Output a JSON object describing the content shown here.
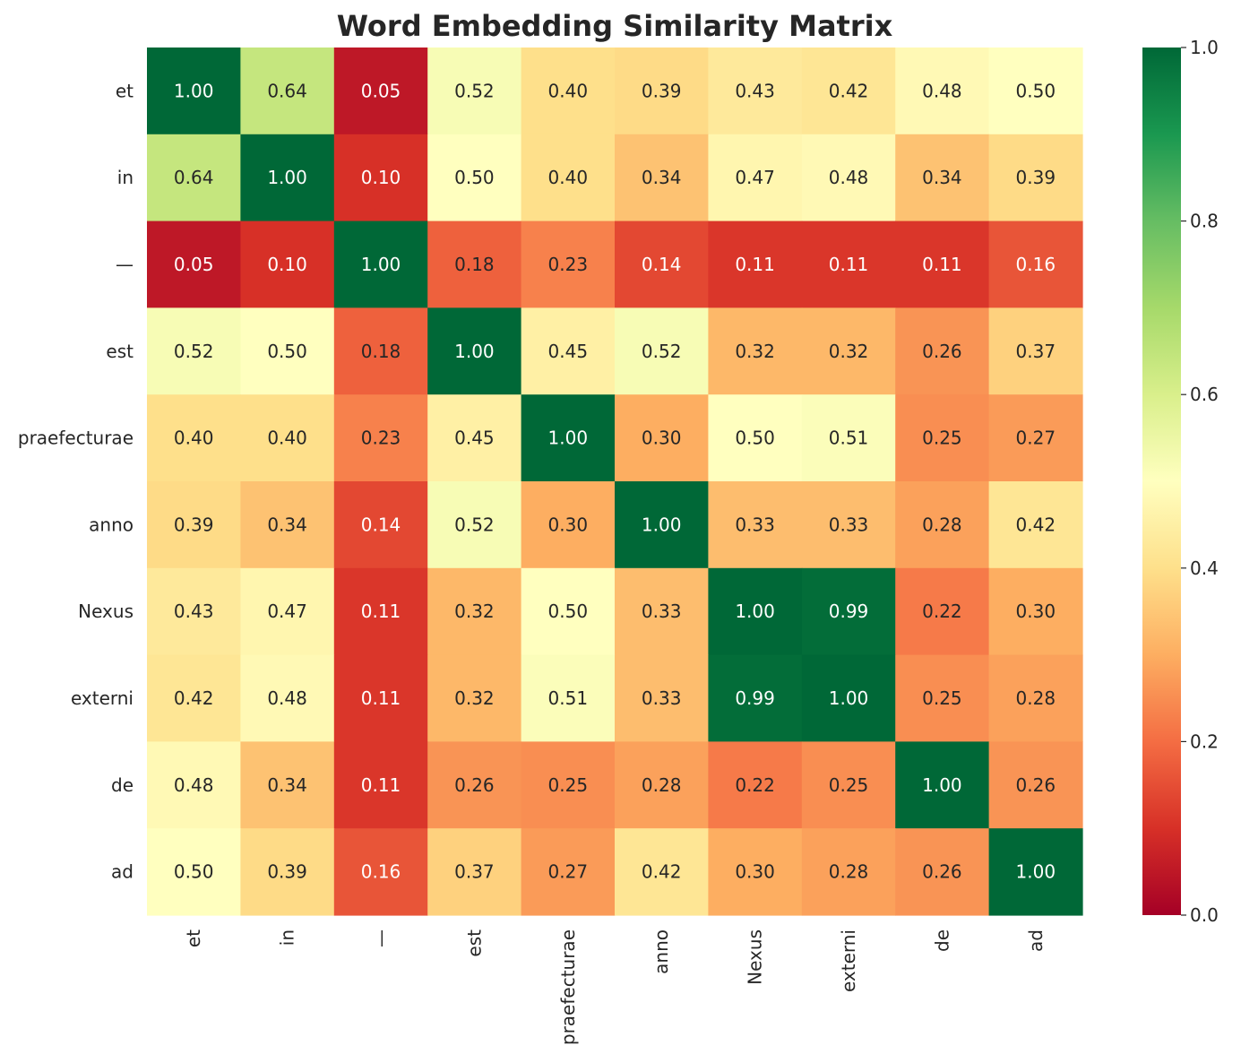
{
  "chart_data": {
    "type": "heatmap",
    "title": "Word Embedding Similarity Matrix",
    "xlabel": "",
    "ylabel": "",
    "row_labels": [
      "et",
      "in",
      "—",
      "est",
      "praefecturae",
      "anno",
      "Nexus",
      "externi",
      "de",
      "ad"
    ],
    "col_labels": [
      "et",
      "in",
      "—",
      "est",
      "praefecturae",
      "anno",
      "Nexus",
      "externi",
      "de",
      "ad"
    ],
    "values": [
      [
        1.0,
        0.64,
        0.05,
        0.52,
        0.4,
        0.39,
        0.43,
        0.42,
        0.48,
        0.5
      ],
      [
        0.64,
        1.0,
        0.1,
        0.5,
        0.4,
        0.34,
        0.47,
        0.48,
        0.34,
        0.39
      ],
      [
        0.05,
        0.1,
        1.0,
        0.18,
        0.23,
        0.14,
        0.11,
        0.11,
        0.11,
        0.16
      ],
      [
        0.52,
        0.5,
        0.18,
        1.0,
        0.45,
        0.52,
        0.32,
        0.32,
        0.26,
        0.37
      ],
      [
        0.4,
        0.4,
        0.23,
        0.45,
        1.0,
        0.3,
        0.5,
        0.51,
        0.25,
        0.27
      ],
      [
        0.39,
        0.34,
        0.14,
        0.52,
        0.3,
        1.0,
        0.33,
        0.33,
        0.28,
        0.42
      ],
      [
        0.43,
        0.47,
        0.11,
        0.32,
        0.5,
        0.33,
        1.0,
        0.99,
        0.22,
        0.3
      ],
      [
        0.42,
        0.48,
        0.11,
        0.32,
        0.51,
        0.33,
        0.99,
        1.0,
        0.25,
        0.28
      ],
      [
        0.48,
        0.34,
        0.11,
        0.26,
        0.25,
        0.28,
        0.22,
        0.25,
        1.0,
        0.26
      ],
      [
        0.5,
        0.39,
        0.16,
        0.37,
        0.27,
        0.42,
        0.3,
        0.28,
        0.26,
        1.0
      ]
    ],
    "value_format": "0.00",
    "colormap": "RdYlGn",
    "vmin": 0.0,
    "vmax": 1.0,
    "colorbar_ticks": [
      "0.0",
      "0.2",
      "0.4",
      "0.6",
      "0.8",
      "1.0"
    ],
    "grid": false
  }
}
